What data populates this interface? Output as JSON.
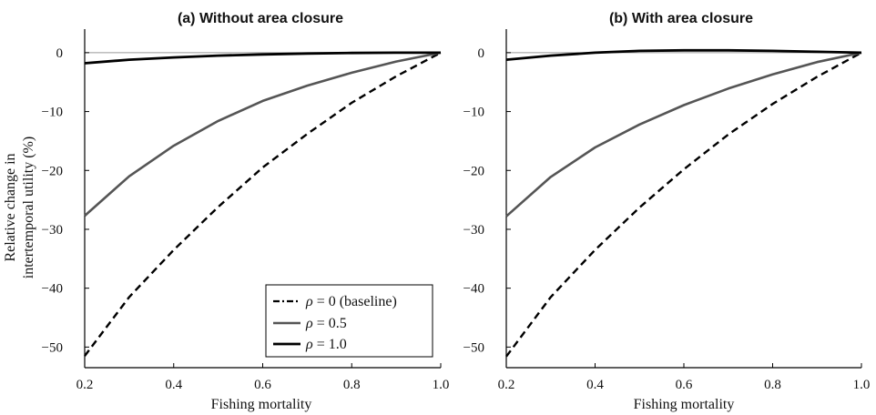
{
  "ylabel_lines": [
    "Relative change in",
    "intertemporal utility (%)"
  ],
  "legend": [
    {
      "symbol": "ρ",
      "text": " = 0 (baseline)"
    },
    {
      "symbol": "ρ",
      "text": " = 0.5"
    },
    {
      "symbol": "ρ",
      "text": " = 1.0"
    }
  ],
  "colors": {
    "rho0": "#000000",
    "rho05": "#555555",
    "rho1": "#000000",
    "zero_line": "#999999",
    "axis": "#000000"
  },
  "chart_data": [
    {
      "type": "line",
      "title": "(a) Without area closure",
      "xlabel": "Fishing mortality",
      "ylabel": "Relative change in intertemporal utility (%)",
      "xlim": [
        0.2,
        1.0
      ],
      "ylim": [
        -53.5,
        4
      ],
      "xticks": [
        0.2,
        0.4,
        0.6,
        0.8,
        1.0
      ],
      "xtick_labels": [
        "0.2",
        "0.4",
        "0.6",
        "0.8",
        "1.0"
      ],
      "yticks": [
        0,
        -10,
        -20,
        -30,
        -40,
        -50
      ],
      "ytick_labels": [
        "0",
        "−10",
        "−20",
        "−30",
        "−40",
        "−50"
      ],
      "x": [
        0.2,
        0.3,
        0.4,
        0.5,
        0.6,
        0.7,
        0.8,
        0.9,
        1.0
      ],
      "series": [
        {
          "name": "ρ = 0 (baseline)",
          "style": "dashed",
          "values": [
            -51.5,
            -41.5,
            -33.5,
            -26.2,
            -19.5,
            -13.8,
            -8.5,
            -4.0,
            0.0
          ]
        },
        {
          "name": "ρ = 0.5",
          "style": "solid",
          "values": [
            -27.7,
            -21.0,
            -15.8,
            -11.6,
            -8.2,
            -5.6,
            -3.4,
            -1.5,
            0.0
          ]
        },
        {
          "name": "ρ = 1.0",
          "style": "solid",
          "values": [
            -1.8,
            -1.2,
            -0.8,
            -0.5,
            -0.3,
            -0.15,
            -0.05,
            0.0,
            0.0
          ]
        }
      ],
      "legend_position": "lower-right"
    },
    {
      "type": "line",
      "title": "(b) With area closure",
      "xlabel": "Fishing mortality",
      "ylabel": "",
      "xlim": [
        0.2,
        1.0
      ],
      "ylim": [
        -53.5,
        4
      ],
      "xticks": [
        0.2,
        0.4,
        0.6,
        0.8,
        1.0
      ],
      "xtick_labels": [
        "0.2",
        "0.4",
        "0.6",
        "0.8",
        "1.0"
      ],
      "yticks": [
        0,
        -10,
        -20,
        -30,
        -40,
        -50
      ],
      "ytick_labels": [
        "0",
        "−10",
        "−20",
        "−30",
        "−40",
        "−50"
      ],
      "x": [
        0.2,
        0.3,
        0.4,
        0.5,
        0.6,
        0.7,
        0.8,
        0.9,
        1.0
      ],
      "series": [
        {
          "name": "ρ = 0 (baseline)",
          "style": "dashed",
          "values": [
            -51.6,
            -41.5,
            -33.5,
            -26.3,
            -19.8,
            -13.9,
            -8.7,
            -4.1,
            0.0
          ]
        },
        {
          "name": "ρ = 0.5",
          "style": "solid",
          "values": [
            -27.8,
            -21.1,
            -16.1,
            -12.2,
            -8.9,
            -6.1,
            -3.7,
            -1.6,
            0.0
          ]
        },
        {
          "name": "ρ = 1.0",
          "style": "solid",
          "values": [
            -1.2,
            -0.5,
            0.0,
            0.3,
            0.4,
            0.4,
            0.3,
            0.15,
            0.0
          ]
        }
      ],
      "legend_position": "none"
    }
  ]
}
